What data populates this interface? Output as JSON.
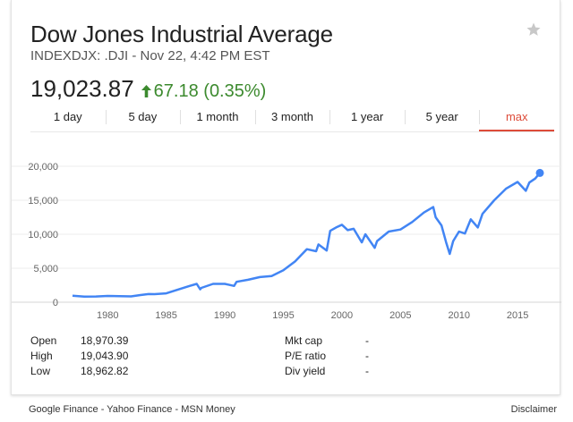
{
  "header": {
    "title": "Dow Jones Industrial Average",
    "subtitle": "INDEXDJX: .DJI - Nov 22, 4:42 PM EST",
    "price": "19,023.87",
    "change": "67.18 (0.35%)"
  },
  "tabs": [
    {
      "label": "1 day"
    },
    {
      "label": "5 day"
    },
    {
      "label": "1 month"
    },
    {
      "label": "3 month"
    },
    {
      "label": "1 year"
    },
    {
      "label": "5 year"
    },
    {
      "label": "max"
    }
  ],
  "active_tab": "max",
  "colors": {
    "line": "#4285f4",
    "positive": "#3c8a2e",
    "active_tab": "#dd4b39"
  },
  "chart_data": {
    "type": "line",
    "title": "",
    "xlabel": "",
    "ylabel": "",
    "xlim": [
      1977,
      2016.9
    ],
    "ylim": [
      0,
      20000
    ],
    "x_ticks": [
      "1980",
      "1985",
      "1990",
      "1995",
      "2000",
      "2005",
      "2010",
      "2015"
    ],
    "y_ticks": [
      "0",
      "5,000",
      "10,000",
      "15,000",
      "20,000"
    ],
    "grid": true,
    "series": [
      {
        "x": [
          1977,
          1978,
          1979,
          1980,
          1981,
          1982,
          1982.8,
          1983.5,
          1984,
          1985,
          1986,
          1987,
          1987.6,
          1987.9,
          1988,
          1989,
          1990,
          1990.8,
          1991,
          1992,
          1993,
          1994,
          1995,
          1996,
          1997,
          1997.8,
          1998,
          1998.7,
          1999,
          1999.5,
          2000,
          2000.5,
          2001,
          2001.7,
          2002,
          2002.8,
          2003,
          2004,
          2005,
          2006,
          2007,
          2007.8,
          2008,
          2008.5,
          2008.9,
          2009.2,
          2009.5,
          2010,
          2010.5,
          2011,
          2011.6,
          2012,
          2013,
          2014,
          2015,
          2015.7,
          2016,
          2016.5,
          2016.9
        ],
        "y": [
          960,
          820,
          840,
          920,
          880,
          850,
          1050,
          1200,
          1180,
          1300,
          1850,
          2400,
          2700,
          1900,
          2100,
          2700,
          2700,
          2400,
          3000,
          3300,
          3700,
          3850,
          4700,
          6000,
          7800,
          7500,
          8500,
          7600,
          10500,
          11000,
          11400,
          10600,
          10800,
          8800,
          10000,
          8000,
          9000,
          10400,
          10700,
          11800,
          13200,
          14000,
          12500,
          11300,
          8800,
          7100,
          9000,
          10400,
          10100,
          12200,
          11000,
          13000,
          15000,
          16700,
          17700,
          16400,
          17600,
          18200,
          19024
        ]
      }
    ]
  },
  "stats": {
    "left": [
      {
        "label": "Open",
        "value": "18,970.39"
      },
      {
        "label": "High",
        "value": "19,043.90"
      },
      {
        "label": "Low",
        "value": "18,962.82"
      }
    ],
    "right": [
      {
        "label": "Mkt cap",
        "value": "-"
      },
      {
        "label": "P/E ratio",
        "value": "-"
      },
      {
        "label": "Div yield",
        "value": "-"
      }
    ]
  },
  "footer": {
    "sources": "Google Finance - Yahoo Finance - MSN Money",
    "disclaimer": "Disclaimer"
  }
}
